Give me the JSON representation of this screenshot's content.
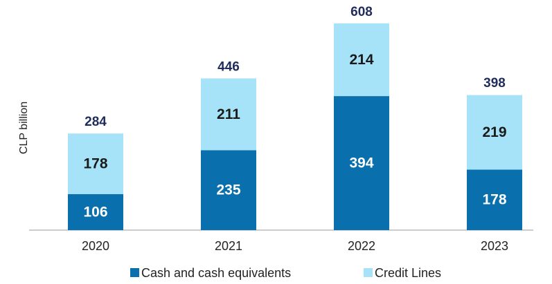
{
  "chart_data": {
    "type": "stacked_bar",
    "categories": [
      "2020",
      "2021",
      "2022",
      "2023"
    ],
    "series": [
      {
        "name": "Cash and cash equivalents",
        "color": "#0a70ad",
        "values": [
          106,
          235,
          394,
          178
        ]
      },
      {
        "name": "Credit Lines",
        "color": "#a6e3f8",
        "values": [
          178,
          211,
          214,
          219
        ]
      }
    ],
    "totals": [
      284,
      446,
      608,
      398
    ],
    "y_label": "CLP billion",
    "ylim": [
      0,
      640
    ],
    "legend": "bottom"
  }
}
